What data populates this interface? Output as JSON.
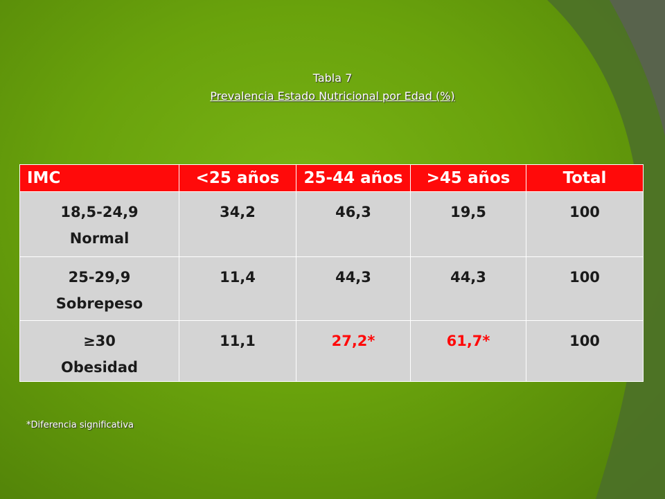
{
  "title": "Tabla 7",
  "subtitle": "Prevalencia Estado Nutricional por Edad (%)",
  "table": {
    "headers": [
      "IMC",
      "<25 años",
      "25-44 años",
      ">45 años",
      "Total"
    ],
    "rows": [
      {
        "label_line1": "18,5-24,9",
        "label_line2": "Normal",
        "values": [
          "34,2",
          "46,3",
          "19,5",
          "100"
        ]
      },
      {
        "label_line1": "25-29,9",
        "label_line2": "Sobrepeso",
        "values": [
          "11,4",
          "44,3",
          "44,3",
          "100"
        ]
      },
      {
        "label_line1": "≥30",
        "label_line2": "Obesidad",
        "values": [
          "11,1",
          "27,2*",
          "61,7*",
          "100"
        ]
      }
    ]
  },
  "footnote": "*Diferencia significativa",
  "colors": {
    "background": "#69a20c",
    "header": "#ff0a0a",
    "cell": "#d4d4d4",
    "highlight_text": "#ff0a0a"
  }
}
